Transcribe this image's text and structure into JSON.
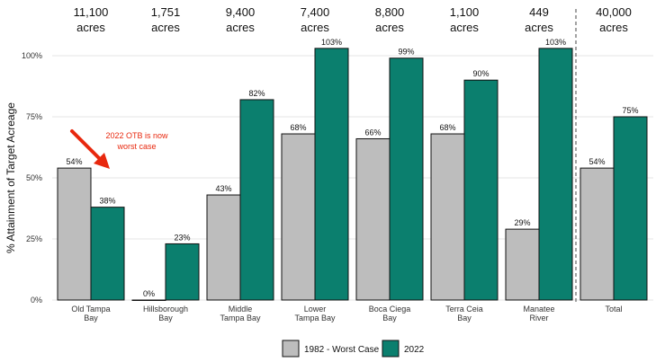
{
  "chart_data": {
    "type": "bar",
    "ylabel": "% Attainment of Target Acreage",
    "ylim": [
      0,
      105
    ],
    "yticks": [
      0,
      25,
      50,
      75,
      100
    ],
    "ytick_labels": [
      "0%",
      "25%",
      "50%",
      "75%",
      "100%"
    ],
    "categories": [
      [
        "Old Tampa",
        "Bay"
      ],
      [
        "Hillsborough",
        "Bay"
      ],
      [
        "Middle",
        "Tampa Bay"
      ],
      [
        "Lower",
        "Tampa Bay"
      ],
      [
        "Boca Ciega",
        "Bay"
      ],
      [
        "Terra Ceia",
        "Bay"
      ],
      [
        "Manatee",
        "River"
      ],
      [
        "Total"
      ]
    ],
    "acreage": [
      "11,100",
      "1,751",
      "9,400",
      "7,400",
      "8,800",
      "1,100",
      "449",
      "40,000"
    ],
    "acreage_unit": "acres",
    "series": [
      {
        "name": "1982 - Worst Case",
        "color": "#bdbdbd",
        "values": [
          54,
          0,
          43,
          68,
          66,
          68,
          29,
          54
        ],
        "labels": [
          "54%",
          "0%",
          "43%",
          "68%",
          "66%",
          "68%",
          "29%",
          "54%"
        ]
      },
      {
        "name": "2022",
        "color": "#0b7f6e",
        "values": [
          38,
          23,
          82,
          103,
          99,
          90,
          103,
          75
        ],
        "labels": [
          "38%",
          "23%",
          "82%",
          "103%",
          "99%",
          "90%",
          "103%",
          "75%"
        ]
      }
    ],
    "annotation": {
      "text": [
        "2022 OTB is now",
        "worst case"
      ],
      "color": "#e8280e"
    },
    "grid": true,
    "legend": "bottom-center"
  }
}
